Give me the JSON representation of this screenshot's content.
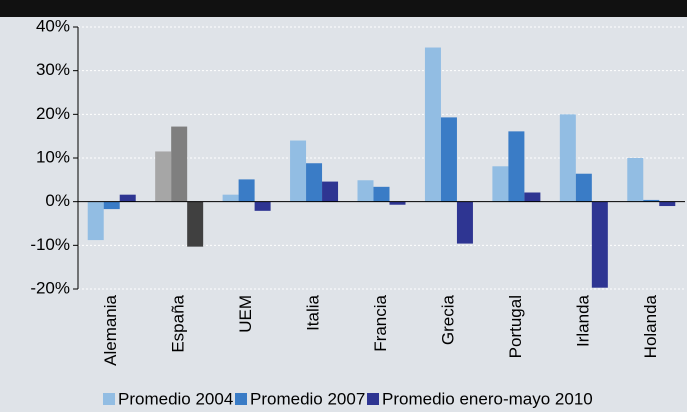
{
  "chart_data": {
    "type": "bar",
    "categories": [
      "Alemania",
      "España",
      "UEM",
      "Italia",
      "Francia",
      "Grecia",
      "Portugal",
      "Irlanda",
      "Holanda"
    ],
    "series": [
      {
        "name": "Promedio 2004",
        "color": "#92bde3",
        "colors": [
          "#92bde3",
          "#a6a6a6",
          "#92bde3",
          "#92bde3",
          "#92bde3",
          "#92bde3",
          "#92bde3",
          "#92bde3",
          "#92bde3"
        ],
        "values": [
          -8.8,
          11.5,
          1.6,
          14,
          4.9,
          35.3,
          8.1,
          20,
          10
        ]
      },
      {
        "name": "Promedio 2007",
        "color": "#3a7cc6",
        "colors": [
          "#3a7cc6",
          "#7f7f7f",
          "#3a7cc6",
          "#3a7cc6",
          "#3a7cc6",
          "#3a7cc6",
          "#3a7cc6",
          "#3a7cc6",
          "#3a7cc6"
        ],
        "values": [
          -1.7,
          17.2,
          5.1,
          8.8,
          3.4,
          19.3,
          16.1,
          6.4,
          0.4
        ]
      },
      {
        "name": "Promedio enero-mayo 2010",
        "color": "#2e3592",
        "colors": [
          "#2e3592",
          "#404040",
          "#2e3592",
          "#2e3592",
          "#2e3592",
          "#2e3592",
          "#2e3592",
          "#2e3592",
          "#2e3592"
        ],
        "values": [
          1.6,
          -10.3,
          -2.1,
          4.6,
          -0.7,
          -9.6,
          2.1,
          -19.7,
          -1
        ]
      }
    ],
    "ylim": [
      -20,
      40
    ],
    "yticks": [
      {
        "value": -20,
        "label": "-20%"
      },
      {
        "value": -10,
        "label": "-10%"
      },
      {
        "value": 0,
        "label": "0%"
      },
      {
        "value": 10,
        "label": "10%"
      },
      {
        "value": 20,
        "label": "20%"
      },
      {
        "value": 30,
        "label": "30%"
      },
      {
        "value": 40,
        "label": "40%"
      }
    ],
    "grid": true,
    "legend": "bottom"
  }
}
